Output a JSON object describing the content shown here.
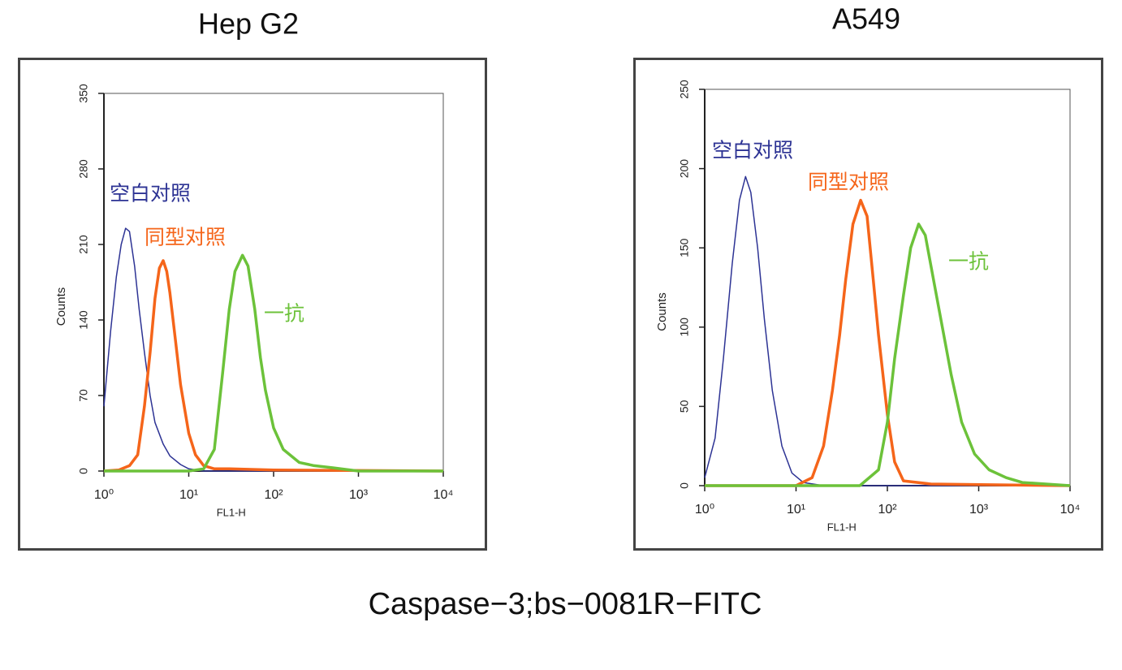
{
  "chart_data": [
    {
      "type": "line",
      "title": "Hep G2",
      "xlabel": "FL1-H",
      "ylabel": "Counts",
      "log_x": true,
      "grid": false,
      "xlim": [
        1,
        10000
      ],
      "xticks": [
        {
          "value": 1,
          "label": "10⁰"
        },
        {
          "value": 10,
          "label": "10¹"
        },
        {
          "value": 100,
          "label": "10²"
        },
        {
          "value": 1000,
          "label": "10³"
        },
        {
          "value": 10000,
          "label": "10⁴"
        }
      ],
      "ylim": [
        0,
        350
      ],
      "yticks": [
        0,
        70,
        140,
        210,
        280,
        350
      ],
      "series": [
        {
          "name": "空白对照",
          "color": "#2d3394",
          "x": [
            1,
            1.2,
            1.4,
            1.6,
            1.8,
            2,
            2.3,
            2.6,
            3,
            3.5,
            4,
            5,
            6,
            8,
            10,
            15,
            10000
          ],
          "values": [
            60,
            130,
            180,
            210,
            225,
            222,
            190,
            150,
            110,
            70,
            45,
            25,
            14,
            6,
            2,
            0,
            0
          ]
        },
        {
          "name": "同型对照",
          "color": "#f5651a",
          "x": [
            1,
            1.5,
            2,
            2.5,
            3,
            3.5,
            4,
            4.5,
            5,
            5.5,
            6,
            7,
            8,
            10,
            12,
            15,
            20,
            30,
            100,
            10000
          ],
          "values": [
            0,
            1,
            5,
            15,
            60,
            110,
            160,
            188,
            195,
            185,
            165,
            120,
            80,
            35,
            15,
            5,
            2,
            2,
            1,
            0
          ]
        },
        {
          "name": "一抗",
          "color": "#6cc23a",
          "x": [
            1,
            10,
            15,
            20,
            25,
            30,
            35,
            43,
            50,
            60,
            70,
            80,
            100,
            130,
            200,
            300,
            500,
            1000,
            10000
          ],
          "values": [
            0,
            0,
            2,
            20,
            90,
            150,
            185,
            200,
            190,
            150,
            105,
            75,
            40,
            20,
            8,
            5,
            3,
            0,
            0
          ]
        }
      ]
    },
    {
      "type": "line",
      "title": "A549",
      "xlabel": "FL1-H",
      "ylabel": "Counts",
      "log_x": true,
      "grid": false,
      "xlim": [
        1,
        10000
      ],
      "xticks": [
        {
          "value": 1,
          "label": "10⁰"
        },
        {
          "value": 10,
          "label": "10¹"
        },
        {
          "value": 100,
          "label": "10²"
        },
        {
          "value": 1000,
          "label": "10³"
        },
        {
          "value": 10000,
          "label": "10⁴"
        }
      ],
      "ylim": [
        0,
        250
      ],
      "yticks": [
        0,
        50,
        100,
        150,
        200,
        250
      ],
      "series": [
        {
          "name": "空白对照",
          "color": "#2d3394",
          "x": [
            1,
            1.3,
            1.6,
            2,
            2.4,
            2.8,
            3.2,
            3.8,
            4.5,
            5.5,
            7,
            9,
            12,
            20,
            10000
          ],
          "values": [
            5,
            30,
            80,
            140,
            180,
            195,
            185,
            150,
            105,
            60,
            25,
            8,
            2,
            0,
            0
          ]
        },
        {
          "name": "同型对照",
          "color": "#f5651a",
          "x": [
            1,
            10,
            15,
            20,
            25,
            30,
            35,
            42,
            51,
            60,
            70,
            80,
            100,
            120,
            150,
            300,
            10000
          ],
          "values": [
            0,
            0,
            5,
            25,
            60,
            95,
            130,
            165,
            180,
            170,
            130,
            95,
            45,
            15,
            3,
            1,
            0
          ]
        },
        {
          "name": "一抗",
          "color": "#6cc23a",
          "x": [
            1,
            50,
            80,
            100,
            120,
            150,
            180,
            220,
            260,
            320,
            400,
            500,
            650,
            900,
            1300,
            2000,
            3000,
            10000
          ],
          "values": [
            0,
            0,
            10,
            40,
            80,
            120,
            150,
            165,
            158,
            130,
            100,
            70,
            40,
            20,
            10,
            5,
            2,
            0
          ]
        }
      ]
    }
  ],
  "caption": "Caspase−3;bs−0081R−FITC"
}
